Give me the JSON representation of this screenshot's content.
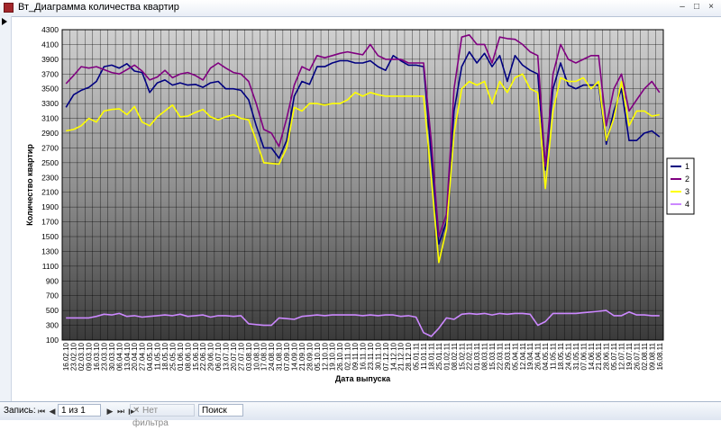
{
  "window": {
    "title": "Вт_Диаграмма количества квартир",
    "minimize": "–",
    "maximize": "□",
    "close": "×"
  },
  "navigation": {
    "record_label": "Запись:",
    "first": "⏮",
    "prev": "◀",
    "position": "1 из 1",
    "next": "▶",
    "last": "⏭",
    "new": "▶*",
    "filter_label": "Нет фильтра",
    "search_label": "Поиск"
  },
  "chart_data": {
    "type": "line",
    "title": "",
    "xlabel": "Дата выпуска",
    "ylabel": "Количество квартир",
    "ylim": [
      100,
      4300
    ],
    "ytick_step": 200,
    "grid": true,
    "legend_position": "right",
    "x": [
      "16.02.10",
      "23.02.10",
      "02.03.10",
      "09.03.10",
      "16.03.10",
      "23.03.10",
      "30.03.10",
      "06.04.10",
      "13.04.10",
      "20.04.10",
      "27.04.10",
      "04.05.10",
      "11.05.10",
      "18.05.10",
      "25.05.10",
      "01.06.10",
      "08.06.10",
      "15.06.10",
      "22.06.10",
      "29.06.10",
      "06.07.10",
      "13.07.10",
      "20.07.10",
      "27.07.10",
      "03.08.10",
      "10.08.10",
      "17.08.10",
      "24.08.10",
      "31.08.10",
      "07.09.10",
      "14.09.10",
      "21.09.10",
      "28.09.10",
      "05.10.10",
      "12.10.10",
      "19.10.10",
      "26.10.10",
      "02.11.10",
      "09.11.10",
      "16.11.10",
      "23.11.10",
      "30.11.10",
      "07.12.10",
      "14.12.10",
      "21.12.10",
      "28.12.10",
      "05.01.11",
      "11.01.11",
      "18.01.11",
      "25.01.11",
      "01.02.11",
      "08.02.11",
      "15.02.11",
      "22.02.11",
      "01.03.11",
      "08.03.11",
      "15.03.11",
      "22.03.11",
      "29.03.11",
      "05.04.11",
      "12.04.11",
      "19.04.11",
      "26.04.11",
      "04.05.11",
      "11.05.11",
      "18.05.11",
      "24.05.11",
      "31.05.11",
      "07.06.11",
      "14.06.11",
      "21.06.11",
      "28.06.11",
      "05.07.11",
      "12.07.11",
      "19.07.11",
      "26.07.11",
      "02.08.11",
      "09.08.11",
      "16.08.11"
    ],
    "series": [
      {
        "name": "1",
        "color": "#000080",
        "values": [
          3250,
          3420,
          3480,
          3520,
          3600,
          3800,
          3820,
          3780,
          3840,
          3740,
          3720,
          3450,
          3580,
          3620,
          3550,
          3580,
          3550,
          3560,
          3520,
          3580,
          3600,
          3500,
          3500,
          3480,
          3350,
          3000,
          2700,
          2700,
          2560,
          2800,
          3400,
          3600,
          3560,
          3800,
          3800,
          3850,
          3880,
          3880,
          3850,
          3850,
          3880,
          3800,
          3750,
          3950,
          3880,
          3820,
          3820,
          3800,
          2600,
          1400,
          1700,
          3200,
          3800,
          4000,
          3850,
          3980,
          3800,
          3950,
          3600,
          3950,
          3820,
          3750,
          3700,
          2400,
          3500,
          3850,
          3550,
          3500,
          3550,
          3550,
          3550,
          2750,
          3200,
          3500,
          2800,
          2800,
          2900,
          2930,
          2850
        ]
      },
      {
        "name": "2",
        "color": "#800080",
        "values": [
          3570,
          3680,
          3800,
          3780,
          3800,
          3760,
          3720,
          3700,
          3760,
          3820,
          3740,
          3620,
          3660,
          3750,
          3650,
          3700,
          3720,
          3680,
          3620,
          3780,
          3850,
          3780,
          3720,
          3700,
          3600,
          3300,
          2950,
          2900,
          2720,
          3100,
          3550,
          3800,
          3750,
          3950,
          3920,
          3950,
          3980,
          4000,
          3980,
          3960,
          4100,
          3950,
          3900,
          3900,
          3900,
          3850,
          3850,
          3850,
          2800,
          1500,
          1800,
          3500,
          4200,
          4230,
          4100,
          4100,
          3850,
          4200,
          4180,
          4170,
          4100,
          4000,
          3950,
          2450,
          3700,
          4100,
          3900,
          3850,
          3900,
          3950,
          3950,
          3000,
          3500,
          3700,
          3200,
          3350,
          3500,
          3600,
          3450
        ]
      },
      {
        "name": "3",
        "color": "#ffff00",
        "values": [
          2930,
          2950,
          3000,
          3100,
          3050,
          3200,
          3220,
          3230,
          3150,
          3260,
          3050,
          3000,
          3120,
          3200,
          3280,
          3120,
          3130,
          3180,
          3220,
          3120,
          3080,
          3120,
          3150,
          3100,
          3080,
          2800,
          2500,
          2490,
          2480,
          2700,
          3250,
          3200,
          3300,
          3300,
          3280,
          3300,
          3300,
          3350,
          3450,
          3400,
          3450,
          3420,
          3400,
          3400,
          3400,
          3400,
          3400,
          3400,
          2300,
          1150,
          1600,
          2900,
          3500,
          3600,
          3550,
          3600,
          3300,
          3600,
          3450,
          3650,
          3700,
          3500,
          3450,
          2150,
          3200,
          3650,
          3600,
          3600,
          3650,
          3500,
          3600,
          2800,
          3100,
          3600,
          3000,
          3200,
          3200,
          3130,
          3150
        ]
      },
      {
        "name": "4",
        "color": "#cc88ff",
        "values": [
          400,
          400,
          400,
          400,
          420,
          450,
          440,
          460,
          420,
          430,
          410,
          420,
          430,
          440,
          430,
          450,
          420,
          430,
          440,
          410,
          430,
          430,
          420,
          430,
          320,
          310,
          300,
          300,
          400,
          390,
          380,
          420,
          430,
          440,
          430,
          440,
          440,
          440,
          440,
          430,
          440,
          430,
          440,
          440,
          420,
          430,
          410,
          200,
          150,
          260,
          400,
          380,
          450,
          460,
          450,
          460,
          440,
          460,
          450,
          460,
          460,
          450,
          300,
          350,
          460,
          460,
          460,
          460,
          470,
          480,
          490,
          500,
          430,
          430,
          480,
          440,
          440,
          430,
          430
        ]
      }
    ]
  }
}
